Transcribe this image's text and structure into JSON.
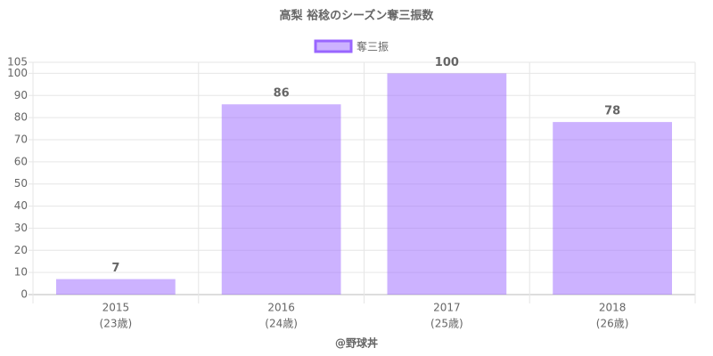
{
  "chart_data": {
    "type": "bar",
    "title": "高梨 裕稔のシーズン奪三振数",
    "categories": [
      "2015",
      "2016",
      "2017",
      "2018"
    ],
    "category_sublabels": [
      "(23歳)",
      "(24歳)",
      "(25歳)",
      "(26歳)"
    ],
    "series": [
      {
        "name": "奪三振",
        "color": "#9966ff",
        "values": [
          7,
          86,
          100,
          78
        ]
      }
    ],
    "ylim": [
      0,
      105
    ],
    "yticks": [
      0,
      10,
      20,
      30,
      40,
      50,
      60,
      70,
      80,
      90,
      100,
      105
    ],
    "grid": true,
    "legend": "top",
    "footer": "@野球丼"
  }
}
